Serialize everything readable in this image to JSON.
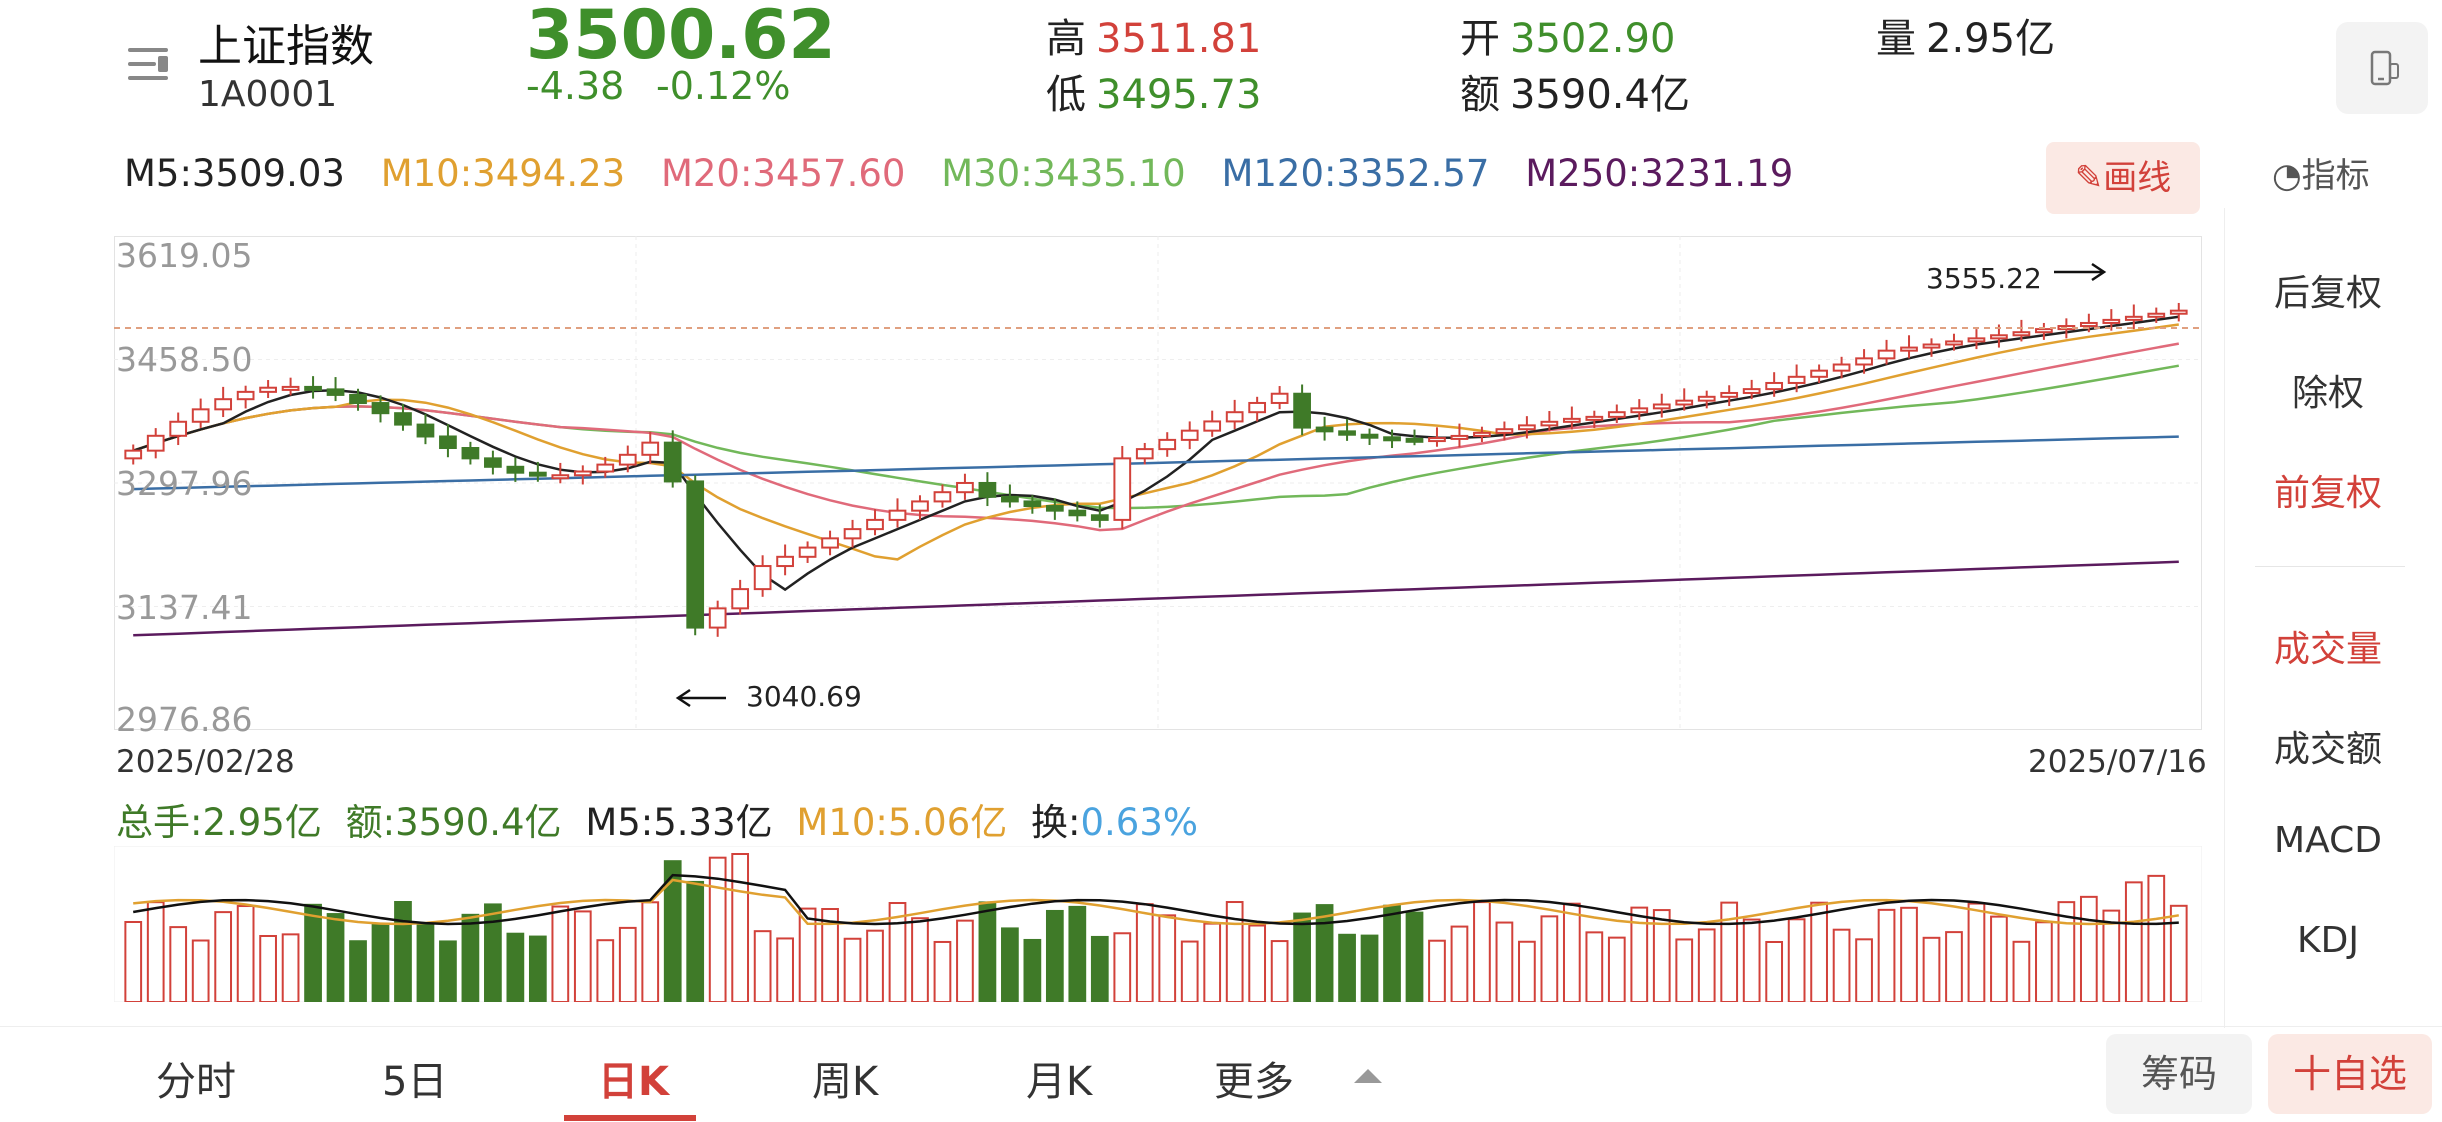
{
  "header": {
    "index_name": "上证指数",
    "index_code": "1A0001",
    "price": "3500.62",
    "change": "-4.38",
    "change_pct": "-0.12%",
    "high_label": "高",
    "high": "3511.81",
    "low_label": "低",
    "low": "3495.73",
    "open_label": "开",
    "open": "3502.90",
    "amount_label": "额",
    "amount": "3590.4亿",
    "volume_label": "量",
    "volume": "2.95亿"
  },
  "ma_legend": [
    {
      "text": "M5:3509.03",
      "color": "#222222"
    },
    {
      "text": "M10:3494.23",
      "color": "#e0a030"
    },
    {
      "text": "M20:3457.60",
      "color": "#e06a7a"
    },
    {
      "text": "M30:3435.10",
      "color": "#72b85a"
    },
    {
      "text": "M120:3352.57",
      "color": "#3a6ea5"
    },
    {
      "text": "M250:3231.19",
      "color": "#5b1b5e"
    }
  ],
  "toolbar": {
    "draw_label": "画线",
    "indicator_label": "指标"
  },
  "chart": {
    "y_ticks": [
      "3619.05",
      "3458.50",
      "3297.96",
      "3137.41",
      "2976.86"
    ],
    "start_date": "2025/02/28",
    "end_date": "2025/07/16",
    "high_annotation": "3555.22",
    "low_annotation": "3040.69"
  },
  "volume_legend": {
    "total": "总手:2.95亿",
    "amount": "额:3590.4亿",
    "m5": "M5:5.33亿",
    "m10": "M10:5.06亿",
    "turnover_label": "换:",
    "turnover": "0.63%"
  },
  "side_panel": {
    "items": [
      "后复权",
      "除权",
      "前复权",
      "成交量",
      "成交额",
      "MACD",
      "KDJ"
    ]
  },
  "tabs": [
    "分时",
    "5日",
    "日K",
    "周K",
    "月K",
    "更多"
  ],
  "buttons": {
    "chips": "筹码",
    "add_watch": "十自选"
  },
  "colors": {
    "up": "#d2413a",
    "down": "#3f7a28",
    "accent": "#d2413a"
  }
}
